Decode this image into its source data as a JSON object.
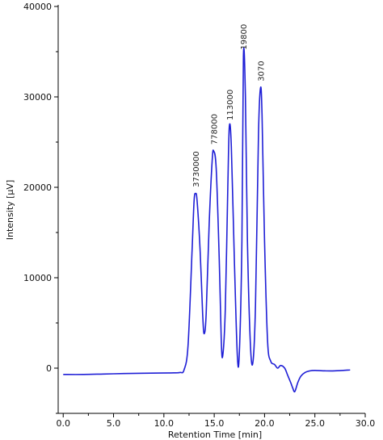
{
  "chart_data": {
    "type": "line",
    "xlabel": "Retention Time [min]",
    "ylabel": "Intensity [µV]",
    "xlim": [
      -0.5,
      30.0
    ],
    "ylim": [
      -5000,
      40000
    ],
    "x_ticks": [
      0,
      5,
      10,
      15,
      20,
      25,
      30
    ],
    "x_tick_labels": [
      "0.0",
      "5.0",
      "10.0",
      "15.0",
      "20.0",
      "25.0",
      "30.0"
    ],
    "y_ticks": [
      0,
      10000,
      20000,
      30000,
      40000
    ],
    "y_tick_labels": [
      "0",
      "10000",
      "20000",
      "30000",
      "40000"
    ],
    "grid": false,
    "series_color": "#1f1fd6",
    "series": [
      {
        "x": [
          0.0,
          2.0,
          4.0,
          6.0,
          8.0,
          9.5,
          10.5,
          11.0,
          11.6,
          12.0,
          12.4,
          12.8,
          13.0,
          13.15,
          13.3,
          13.6,
          13.85,
          14.0,
          14.2,
          14.5,
          14.8,
          14.95,
          15.2,
          15.5,
          15.7,
          15.85,
          16.1,
          16.35,
          16.5,
          16.7,
          17.0,
          17.3,
          17.5,
          17.75,
          17.9,
          18.1,
          18.3,
          18.6,
          18.85,
          19.1,
          19.4,
          19.6,
          19.75,
          20.0,
          20.3,
          20.6,
          21.0,
          21.3,
          21.6,
          22.0,
          22.3,
          22.6,
          22.8,
          23.0,
          23.3,
          23.6,
          24.0,
          24.5,
          25.0,
          26.0,
          27.0,
          28.5
        ],
        "y": [
          -700,
          -700,
          -650,
          -600,
          -560,
          -540,
          -530,
          -520,
          -480,
          -200,
          2500,
          13000,
          18500,
          19300,
          18500,
          13000,
          6000,
          3800,
          6000,
          16000,
          23000,
          24000,
          22000,
          12000,
          3000,
          1400,
          6500,
          20000,
          26700,
          24500,
          12000,
          1300,
          1800,
          14000,
          34500,
          30000,
          14000,
          2500,
          700,
          7000,
          26000,
          31000,
          28000,
          14000,
          3000,
          800,
          400,
          0,
          300,
          0,
          -800,
          -1600,
          -2200,
          -2600,
          -1600,
          -900,
          -500,
          -300,
          -250,
          -300,
          -300,
          -200
        ]
      }
    ],
    "annotations": [
      {
        "text": "3730000",
        "x": 13.15,
        "y": 19300
      },
      {
        "text": "778000",
        "x": 14.95,
        "y": 24000
      },
      {
        "text": "113000",
        "x": 16.5,
        "y": 26700
      },
      {
        "text": "19800",
        "x": 17.9,
        "y": 34500
      },
      {
        "text": "3070",
        "x": 19.6,
        "y": 31000
      }
    ]
  }
}
